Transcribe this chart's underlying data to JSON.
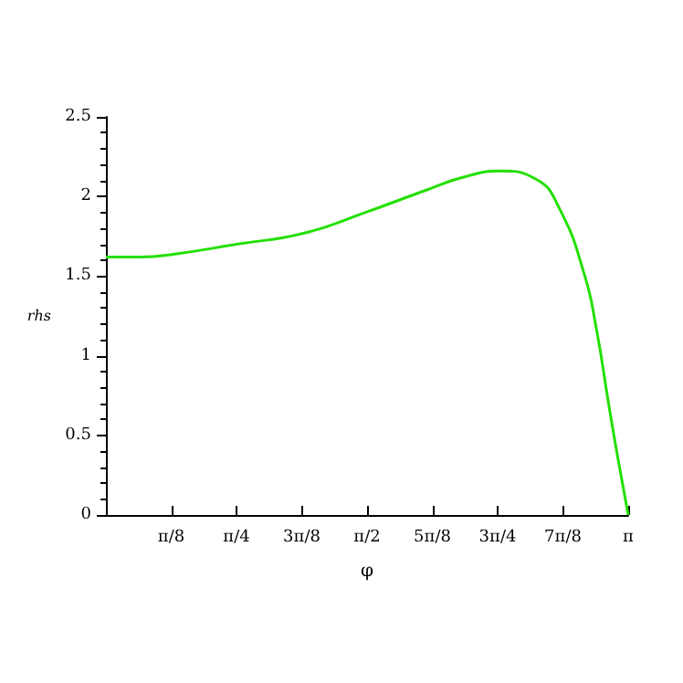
{
  "chart_data": {
    "type": "line",
    "xlabel": "φ",
    "ylabel": "rhs",
    "x": [
      0,
      0.204,
      0.424,
      0.785,
      1.194,
      1.561,
      1.926,
      2.146,
      2.372,
      2.585,
      2.73,
      2.878,
      2.95,
      3.022,
      3.079,
      3.1416
    ],
    "series": [
      {
        "color": "#22e000",
        "values": [
          1.62,
          1.62,
          1.64,
          1.7,
          1.77,
          1.9,
          2.04,
          2.12,
          2.16,
          2.11,
          1.92,
          1.51,
          1.17,
          0.71,
          0.36,
          0
        ]
      }
    ],
    "xlim": [
      0,
      3.1416
    ],
    "xticks": [
      {
        "value": 0.3927,
        "label": "π/8"
      },
      {
        "value": 0.7854,
        "label": "π/4"
      },
      {
        "value": 1.1781,
        "label": "3π/8"
      },
      {
        "value": 1.5708,
        "label": "π/2"
      },
      {
        "value": 1.9635,
        "label": "5π/8"
      },
      {
        "value": 2.3562,
        "label": "3π/4"
      },
      {
        "value": 2.7489,
        "label": "7π/8"
      },
      {
        "value": 3.1416,
        "label": "π"
      }
    ],
    "ylim": [
      0,
      2.5
    ],
    "yticks": [
      0,
      0.5,
      1,
      1.5,
      2,
      2.5
    ],
    "grid": false,
    "marker": "none",
    "line_style": "solid"
  }
}
